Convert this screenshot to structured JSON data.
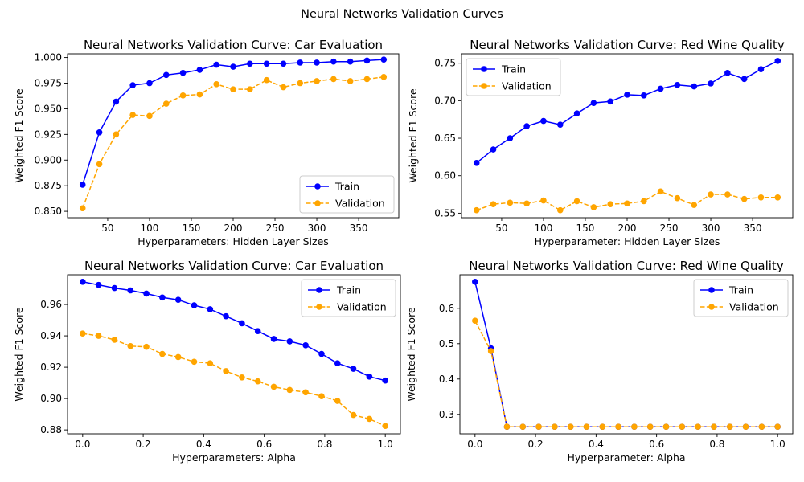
{
  "figure": {
    "suptitle": "Neural Networks Validation Curves"
  },
  "colors": {
    "train": "#0000ff",
    "validation": "#ffa500",
    "axis": "#000000"
  },
  "chart_data": [
    {
      "type": "line",
      "title": "Neural Networks Validation Curve: Car Evaluation",
      "xlabel": "Hyperparameters: Hidden Layer Sizes",
      "ylabel": "Weighted F1 Score",
      "xlim": [
        2,
        398
      ],
      "ylim": [
        0.8438,
        1.0036
      ],
      "xticks": [
        50,
        100,
        150,
        200,
        250,
        300,
        350
      ],
      "xtick_labels": [
        "50",
        "100",
        "150",
        "200",
        "250",
        "300",
        "350"
      ],
      "yticks": [
        0.85,
        0.875,
        0.9,
        0.925,
        0.95,
        0.975,
        1.0
      ],
      "ytick_labels": [
        "0.850",
        "0.875",
        "0.900",
        "0.925",
        "0.950",
        "0.975",
        "1.000"
      ],
      "legend": {
        "position": "lower-right",
        "entries": [
          "Train",
          "Validation"
        ]
      },
      "x": [
        20,
        40,
        60,
        80,
        100,
        120,
        140,
        160,
        180,
        200,
        220,
        240,
        260,
        280,
        300,
        320,
        340,
        360,
        380
      ],
      "series": [
        {
          "name": "Train",
          "style": "solid",
          "values": [
            0.876,
            0.927,
            0.957,
            0.973,
            0.975,
            0.983,
            0.985,
            0.988,
            0.993,
            0.991,
            0.994,
            0.994,
            0.994,
            0.995,
            0.995,
            0.996,
            0.996,
            0.997,
            0.998
          ]
        },
        {
          "name": "Validation",
          "style": "dashed",
          "values": [
            0.853,
            0.896,
            0.925,
            0.944,
            0.943,
            0.955,
            0.963,
            0.964,
            0.974,
            0.969,
            0.969,
            0.978,
            0.971,
            0.975,
            0.977,
            0.979,
            0.977,
            0.979,
            0.981
          ]
        }
      ]
    },
    {
      "type": "line",
      "title": "Neural Networks Validation Curve: Red Wine Quality",
      "xlabel": "Hyperparameter: Hidden Layer Sizes",
      "ylabel": "Weighted F1 Score",
      "xlim": [
        2,
        398
      ],
      "ylim": [
        0.544,
        0.7625
      ],
      "xticks": [
        50,
        100,
        150,
        200,
        250,
        300,
        350
      ],
      "xtick_labels": [
        "50",
        "100",
        "150",
        "200",
        "250",
        "300",
        "350"
      ],
      "yticks": [
        0.55,
        0.6,
        0.65,
        0.7,
        0.75
      ],
      "ytick_labels": [
        "0.55",
        "0.60",
        "0.65",
        "0.70",
        "0.75"
      ],
      "legend": {
        "position": "upper-left",
        "entries": [
          "Train",
          "Validation"
        ]
      },
      "x": [
        20,
        40,
        60,
        80,
        100,
        120,
        140,
        160,
        180,
        200,
        220,
        240,
        260,
        280,
        300,
        320,
        340,
        360,
        380
      ],
      "series": [
        {
          "name": "Train",
          "style": "solid",
          "values": [
            0.617,
            0.635,
            0.65,
            0.666,
            0.673,
            0.668,
            0.683,
            0.697,
            0.699,
            0.708,
            0.707,
            0.716,
            0.721,
            0.719,
            0.723,
            0.737,
            0.729,
            0.742,
            0.753
          ]
        },
        {
          "name": "Validation",
          "style": "dashed",
          "values": [
            0.554,
            0.562,
            0.564,
            0.563,
            0.567,
            0.554,
            0.566,
            0.558,
            0.562,
            0.563,
            0.566,
            0.579,
            0.57,
            0.561,
            0.575,
            0.575,
            0.569,
            0.571,
            0.571
          ]
        }
      ]
    },
    {
      "type": "line",
      "title": "Neural Networks Validation Curve: Car Evaluation",
      "xlabel": "Hyperparameters: Alpha",
      "ylabel": "Weighted F1 Score",
      "xlim": [
        -0.05,
        1.05
      ],
      "ylim": [
        0.8775,
        0.979
      ],
      "xticks": [
        0.0,
        0.2,
        0.4,
        0.6,
        0.8,
        1.0
      ],
      "xtick_labels": [
        "0.0",
        "0.2",
        "0.4",
        "0.6",
        "0.8",
        "1.0"
      ],
      "yticks": [
        0.88,
        0.9,
        0.92,
        0.94,
        0.96
      ],
      "ytick_labels": [
        "0.88",
        "0.90",
        "0.92",
        "0.94",
        "0.96"
      ],
      "legend": {
        "position": "upper-right",
        "entries": [
          "Train",
          "Validation"
        ]
      },
      "x": [
        0.0,
        0.0526,
        0.1053,
        0.1579,
        0.2105,
        0.2632,
        0.3158,
        0.3684,
        0.4211,
        0.4737,
        0.5263,
        0.5789,
        0.6316,
        0.6842,
        0.7368,
        0.7895,
        0.8421,
        0.8947,
        0.9474,
        1.0
      ],
      "series": [
        {
          "name": "Train",
          "style": "solid",
          "values": [
            0.9745,
            0.9725,
            0.9705,
            0.969,
            0.967,
            0.9645,
            0.963,
            0.9595,
            0.957,
            0.9525,
            0.948,
            0.943,
            0.938,
            0.9365,
            0.934,
            0.9285,
            0.9225,
            0.919,
            0.914,
            0.9115
          ]
        },
        {
          "name": "Validation",
          "style": "dashed",
          "values": [
            0.9415,
            0.94,
            0.9375,
            0.9335,
            0.933,
            0.9285,
            0.9265,
            0.9235,
            0.9225,
            0.9175,
            0.9135,
            0.911,
            0.9075,
            0.9055,
            0.904,
            0.9015,
            0.8985,
            0.8895,
            0.887,
            0.8825
          ]
        }
      ]
    },
    {
      "type": "line",
      "title": "Neural Networks Validation Curve: Red Wine Quality",
      "xlabel": "Hyperparameter: Alpha",
      "ylabel": "Weighted F1 Score",
      "xlim": [
        -0.05,
        1.05
      ],
      "ylim": [
        0.245,
        0.695
      ],
      "xticks": [
        0.0,
        0.2,
        0.4,
        0.6,
        0.8,
        1.0
      ],
      "xtick_labels": [
        "0.0",
        "0.2",
        "0.4",
        "0.6",
        "0.8",
        "1.0"
      ],
      "yticks": [
        0.3,
        0.4,
        0.5,
        0.6
      ],
      "ytick_labels": [
        "0.3",
        "0.4",
        "0.5",
        "0.6"
      ],
      "legend": {
        "position": "upper-right",
        "entries": [
          "Train",
          "Validation"
        ]
      },
      "x": [
        0.0,
        0.0526,
        0.1053,
        0.1579,
        0.2105,
        0.2632,
        0.3158,
        0.3684,
        0.4211,
        0.4737,
        0.5263,
        0.5789,
        0.6316,
        0.6842,
        0.7368,
        0.7895,
        0.8421,
        0.8947,
        0.9474,
        1.0
      ],
      "series": [
        {
          "name": "Train",
          "style": "solid",
          "values": [
            0.675,
            0.487,
            0.265,
            0.265,
            0.265,
            0.265,
            0.265,
            0.265,
            0.265,
            0.265,
            0.265,
            0.265,
            0.265,
            0.265,
            0.265,
            0.265,
            0.265,
            0.265,
            0.265,
            0.265
          ]
        },
        {
          "name": "Validation",
          "style": "dashed",
          "values": [
            0.565,
            0.479,
            0.265,
            0.265,
            0.265,
            0.265,
            0.265,
            0.265,
            0.265,
            0.265,
            0.265,
            0.265,
            0.265,
            0.265,
            0.265,
            0.265,
            0.265,
            0.265,
            0.265,
            0.265
          ]
        }
      ]
    }
  ]
}
